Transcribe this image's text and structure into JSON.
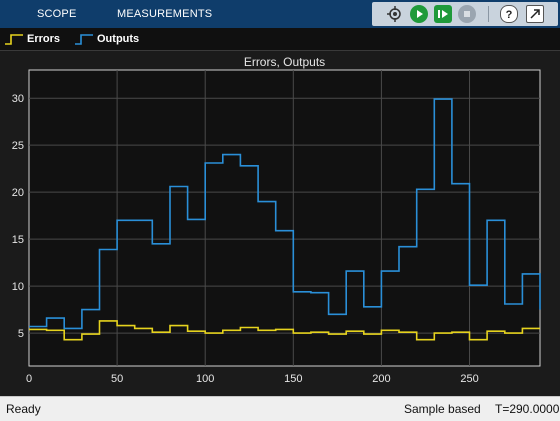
{
  "toolbar": {
    "tabs": [
      "SCOPE",
      "MEASUREMENTS"
    ],
    "background": "#0f3d6b",
    "icons": [
      "highlight-simulink-block-icon",
      "run-icon",
      "step-forward-icon",
      "stop-icon",
      "help-icon",
      "undock-icon"
    ]
  },
  "legend": {
    "items": [
      {
        "label": "Errors",
        "color": "#e6d31e"
      },
      {
        "label": "Outputs",
        "color": "#2a8fd8"
      }
    ]
  },
  "status": {
    "state": "Ready",
    "mode": "Sample based",
    "time": "T=290.0000"
  },
  "chart_data": {
    "type": "line",
    "step": true,
    "title": "Errors, Outputs",
    "xlabel": "",
    "ylabel": "",
    "xlim": [
      0,
      290
    ],
    "ylim": [
      1.5,
      33
    ],
    "xticks": [
      0,
      50,
      100,
      150,
      200,
      250
    ],
    "yticks": [
      5,
      10,
      15,
      20,
      25,
      30
    ],
    "grid": true,
    "background": "#111111",
    "series": [
      {
        "name": "Outputs",
        "color": "#2a8fd8",
        "x": [
          0,
          10,
          20,
          30,
          40,
          50,
          60,
          70,
          80,
          90,
          100,
          110,
          120,
          130,
          140,
          150,
          160,
          170,
          180,
          190,
          200,
          210,
          220,
          230,
          240,
          250,
          260,
          270,
          280,
          290
        ],
        "y": [
          5.7,
          6.6,
          5.5,
          7.5,
          13.9,
          17.0,
          17.0,
          14.5,
          20.6,
          17.1,
          23.1,
          24.0,
          22.8,
          19.0,
          15.9,
          9.4,
          9.3,
          7.0,
          11.6,
          7.8,
          11.6,
          14.2,
          20.3,
          29.9,
          20.9,
          10.1,
          17.0,
          8.1,
          11.3,
          7.5
        ]
      },
      {
        "name": "Errors",
        "color": "#e6d31e",
        "x": [
          0,
          10,
          20,
          30,
          40,
          50,
          60,
          70,
          80,
          90,
          100,
          110,
          120,
          130,
          140,
          150,
          160,
          170,
          180,
          190,
          200,
          210,
          220,
          230,
          240,
          250,
          260,
          270,
          280,
          290
        ],
        "y": [
          5.4,
          5.3,
          4.3,
          4.9,
          6.3,
          5.8,
          5.5,
          5.1,
          5.8,
          5.2,
          5.0,
          5.3,
          5.6,
          5.3,
          5.4,
          5.0,
          5.1,
          4.9,
          5.2,
          4.9,
          5.3,
          5.1,
          4.3,
          5.0,
          5.1,
          4.3,
          5.2,
          5.0,
          5.5,
          5.5
        ]
      }
    ]
  }
}
